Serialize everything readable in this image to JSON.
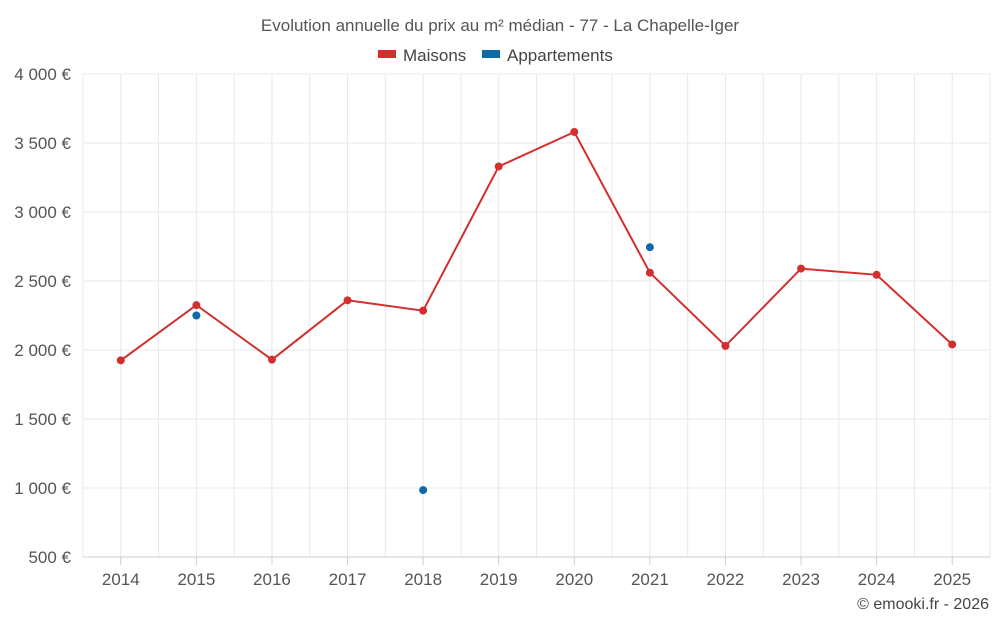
{
  "chart_data": {
    "type": "line",
    "title": "Evolution annuelle du prix au m² médian - 77 - La Chapelle-Iger",
    "categories": [
      "2014",
      "2015",
      "2016",
      "2017",
      "2018",
      "2019",
      "2020",
      "2021",
      "2022",
      "2023",
      "2024",
      "2025"
    ],
    "series": [
      {
        "name": "Maisons",
        "color": "#d32f2f",
        "values": [
          1925,
          2325,
          1930,
          2360,
          2285,
          3330,
          3580,
          2560,
          2030,
          2590,
          2545,
          2040
        ]
      },
      {
        "name": "Appartements",
        "color": "#0e6aa8",
        "values": [
          null,
          2250,
          null,
          null,
          985,
          null,
          null,
          2745,
          null,
          null,
          null,
          null
        ]
      }
    ],
    "yticks": [
      "4 000 €",
      "3 500 €",
      "3 000 €",
      "2 500 €",
      "2 000 €",
      "1 500 €",
      "1 000 €",
      "500 €"
    ],
    "ylim": [
      500,
      4000
    ],
    "xlabel": "",
    "ylabel": "",
    "grid": true,
    "legend": "top-center"
  },
  "credit": "© emooki.fr - 2026"
}
